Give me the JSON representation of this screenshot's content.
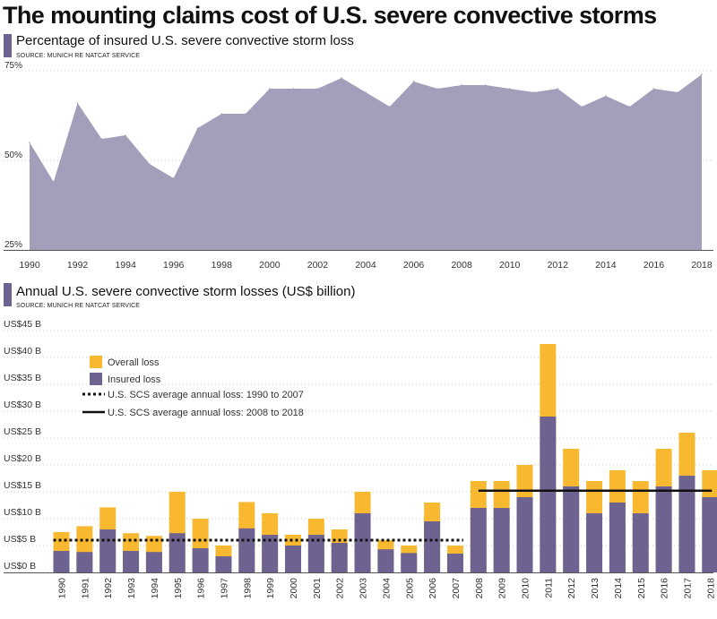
{
  "title": "The mounting claims cost of U.S. severe convective storms",
  "colors": {
    "area": "#a39eba",
    "insured": "#6e6390",
    "overall": "#f8b931",
    "marker": "#6e6390",
    "grid": "#c8c8c8",
    "avg": "#111111"
  },
  "chart_data": [
    {
      "type": "area",
      "title": "Percentage of insured U.S. severe convective storm loss",
      "source": "SOURCE: MUNICH RE NATCAT SERVICE",
      "ylim": [
        25,
        75
      ],
      "yticks": [
        25,
        50,
        75
      ],
      "ytick_labels": [
        "25%",
        "50%",
        "75%"
      ],
      "grid": true,
      "x": [
        1990,
        1991,
        1992,
        1993,
        1994,
        1995,
        1996,
        1997,
        1998,
        1999,
        2000,
        2001,
        2002,
        2003,
        2004,
        2005,
        2006,
        2007,
        2008,
        2009,
        2010,
        2011,
        2012,
        2013,
        2014,
        2015,
        2016,
        2017,
        2018
      ],
      "xtick_labels": [
        "1990",
        "1992",
        "1994",
        "1996",
        "1998",
        "2000",
        "2002",
        "2004",
        "2006",
        "2008",
        "2010",
        "2012",
        "2014",
        "2016",
        "2018"
      ],
      "values": [
        55,
        44,
        66,
        56,
        57,
        49,
        45,
        59,
        63,
        63,
        70,
        70,
        70,
        73,
        69,
        65,
        72,
        70,
        71,
        71,
        70,
        69,
        70,
        65,
        68,
        65,
        70,
        69,
        74
      ]
    },
    {
      "type": "bar",
      "title": "Annual U.S. severe convective storm losses (US$ billion)",
      "source": "SOURCE: MUNICH RE NATCAT SERVICE",
      "ylim": [
        0,
        45
      ],
      "yticks": [
        0,
        5,
        10,
        15,
        20,
        25,
        30,
        35,
        40,
        45
      ],
      "ytick_labels": [
        "US$0 B",
        "US$5 B",
        "US$10 B",
        "US$15 B",
        "US$20 B",
        "US$25 B",
        "US$30 B",
        "US$35 B",
        "US$40 B",
        "US$45 B"
      ],
      "grid": true,
      "categories": [
        "1990",
        "1991",
        "1992",
        "1993",
        "1994",
        "1995",
        "1996",
        "1997",
        "1998",
        "1999",
        "2000",
        "2001",
        "2002",
        "2003",
        "2004",
        "2005",
        "2006",
        "2007",
        "2008",
        "2009",
        "2010",
        "2011",
        "2012",
        "2013",
        "2014",
        "2015",
        "2016",
        "2017",
        "2018"
      ],
      "series": [
        {
          "name": "Overall loss",
          "values": [
            7.5,
            8.6,
            12.1,
            7.3,
            6.8,
            15.0,
            10.0,
            5.0,
            13.1,
            11.0,
            7.0,
            10.0,
            8.0,
            15.0,
            6.0,
            5.0,
            13.0,
            5.0,
            17.0,
            17.0,
            20.0,
            42.5,
            23.0,
            17.0,
            19.0,
            17.0,
            23.0,
            26.0,
            19.0
          ]
        },
        {
          "name": "Insured loss",
          "values": [
            4.0,
            3.8,
            8.0,
            4.0,
            3.8,
            7.3,
            4.5,
            3.0,
            8.2,
            7.0,
            5.0,
            7.0,
            5.5,
            11.0,
            4.3,
            3.6,
            9.5,
            3.5,
            12.0,
            12.0,
            14.0,
            29.0,
            16.0,
            11.0,
            13.0,
            11.0,
            16.0,
            18.0,
            14.0
          ]
        }
      ],
      "averages": [
        {
          "name": "U.S. SCS average annual loss: 1990 to 2007",
          "style": "dotted",
          "value": 6.0,
          "from": "1990",
          "to": "2007"
        },
        {
          "name": "U.S. SCS average annual loss: 2008 to 2018",
          "style": "solid",
          "value": 15.2,
          "from": "2008",
          "to": "2018"
        }
      ],
      "legend_placement": "top-left"
    }
  ]
}
